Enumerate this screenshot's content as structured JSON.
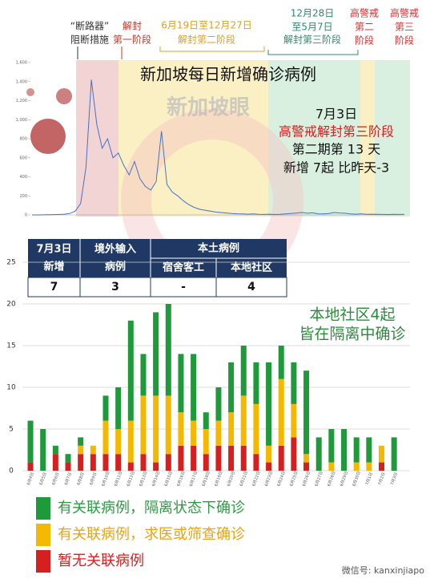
{
  "phases": [
    {
      "lines": [
        "“断路器”",
        "阻断措施"
      ],
      "color": "#333333"
    },
    {
      "lines": [
        "解封",
        "第一阶段"
      ],
      "color": "#c0392b"
    },
    {
      "lines": [
        "6月19日至12月27日",
        "解封第二阶段"
      ],
      "color": "#e0a020"
    },
    {
      "lines": [
        "12月28日",
        "至5月7日",
        "解封第三阶段"
      ],
      "color": "#2e8b6e"
    },
    {
      "lines": [
        "高警戒",
        "第二",
        "阶段"
      ],
      "color": "#d83030"
    },
    {
      "lines": [
        "高警戒",
        "第三",
        "阶段"
      ],
      "color": "#d83030"
    }
  ],
  "watermark": "新加坡眼",
  "annotation": {
    "lines": [
      "7月3日",
      "高警戒解封第三阶段",
      "第二期第 13 天",
      "新增 7起 比昨天-3"
    ]
  },
  "table": {
    "header": [
      [
        "7月3日",
        "新增"
      ],
      [
        "境外输入",
        "病例"
      ]
    ],
    "group": "本土病例",
    "subheaders": [
      "宿舍客工",
      "本地社区"
    ],
    "values": [
      7,
      3,
      "-",
      4
    ]
  },
  "callout": [
    "本地社区4起",
    "皆在隔离中确诊"
  ],
  "footer": "微信号: kanxinjiapo",
  "chart_data": [
    {
      "type": "line",
      "title": "新加坡每日新增确诊病例",
      "color": "#4472c4",
      "values": [
        0,
        0,
        1,
        2,
        3,
        5,
        8,
        15,
        40,
        120,
        500,
        1420,
        950,
        700,
        800,
        600,
        650,
        520,
        420,
        560,
        380,
        300,
        260,
        350,
        880,
        320,
        240,
        200,
        150,
        110,
        80,
        60,
        50,
        40,
        30,
        25,
        20,
        15,
        12,
        10,
        8,
        10,
        6,
        5,
        8,
        4,
        6,
        10,
        15,
        20,
        25,
        18,
        22,
        12,
        10,
        15,
        25,
        20,
        18,
        10,
        8,
        12,
        6,
        8,
        7,
        5,
        4,
        6,
        5,
        7
      ],
      "ylim": [
        0,
        1600
      ],
      "yticks": [
        0,
        200,
        400,
        600,
        800,
        {
          "value": 1000,
          "label": "1,000"
        },
        {
          "value": 1200,
          "label": "1,200"
        },
        {
          "value": 1400,
          "label": "1,400"
        },
        {
          "value": 1600,
          "label": "1,600"
        }
      ]
    },
    {
      "type": "bar",
      "stacked": true,
      "grid": true,
      "categories": [
        "6月4日",
        "6月5日",
        "6月6日",
        "6月7日",
        "6月8日",
        "6月9日",
        "6月10日",
        "6月11日",
        "6月12日",
        "6月13日",
        "6月14日",
        "6月15日",
        "6月16日",
        "6月17日",
        "6月18日",
        "6月19日",
        "6月20日",
        "6月21日",
        "6月22日",
        "6月23日",
        "6月24日",
        "6月25日",
        "6月26日",
        "6月27日",
        "6月28日",
        "6月29日",
        "6月30日",
        "7月1日",
        "7月2日",
        "7月3日"
      ],
      "series": [
        {
          "name": "暂无关联病例",
          "color": "#d62020",
          "values": [
            1,
            0,
            2,
            1,
            2,
            2,
            2,
            2,
            1,
            2,
            1,
            2,
            3,
            3,
            2,
            3,
            3,
            3,
            2,
            1,
            3,
            4,
            1,
            0,
            0,
            0,
            0,
            0,
            1,
            0
          ]
        },
        {
          "name": "有关联病例，求医或筛查确诊",
          "color": "#f5b800",
          "values": [
            0,
            0,
            0,
            0,
            1,
            1,
            4,
            3,
            5,
            7,
            8,
            7,
            4,
            3,
            3,
            3,
            4,
            6,
            6,
            2,
            8,
            4,
            1,
            0,
            1,
            0,
            1,
            1,
            2,
            0
          ]
        },
        {
          "name": "有关联病例，隔离状态下确诊",
          "color": "#1e9a3a",
          "values": [
            5,
            5,
            1,
            1,
            1,
            0,
            3,
            5,
            12,
            5,
            10,
            11,
            7,
            8,
            2,
            4,
            6,
            6,
            5,
            10,
            4,
            5,
            10,
            4,
            4,
            5,
            3,
            3,
            0,
            4
          ]
        }
      ],
      "ylim": [
        0,
        25
      ],
      "yticks": [
        0,
        5,
        10,
        15,
        20,
        25
      ]
    }
  ]
}
